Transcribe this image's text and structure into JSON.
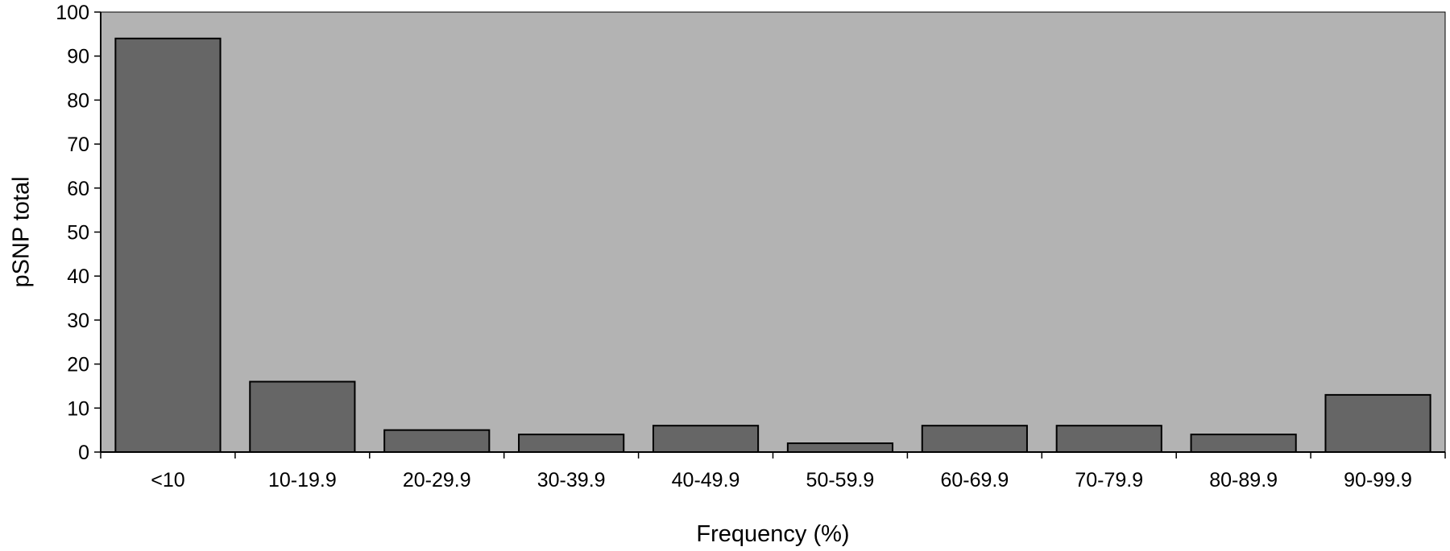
{
  "chart_data": {
    "type": "bar",
    "title": "",
    "xlabel": "Frequency (%)",
    "ylabel": "pSNP total",
    "categories": [
      "<10",
      "10-19.9",
      "20-29.9",
      "30-39.9",
      "40-49.9",
      "50-59.9",
      "60-69.9",
      "70-79.9",
      "80-89.9",
      "90-99.9"
    ],
    "values": [
      94,
      16,
      5,
      4,
      6,
      2,
      6,
      6,
      4,
      13
    ],
    "ylim": [
      0,
      100
    ],
    "yticks": [
      0,
      10,
      20,
      30,
      40,
      50,
      60,
      70,
      80,
      90,
      100
    ],
    "grid": false,
    "legend": "none",
    "colors": {
      "plot_background": "#b3b3b3",
      "bar_fill": "#666666",
      "bar_stroke": "#000000",
      "axis": "#000000"
    }
  }
}
